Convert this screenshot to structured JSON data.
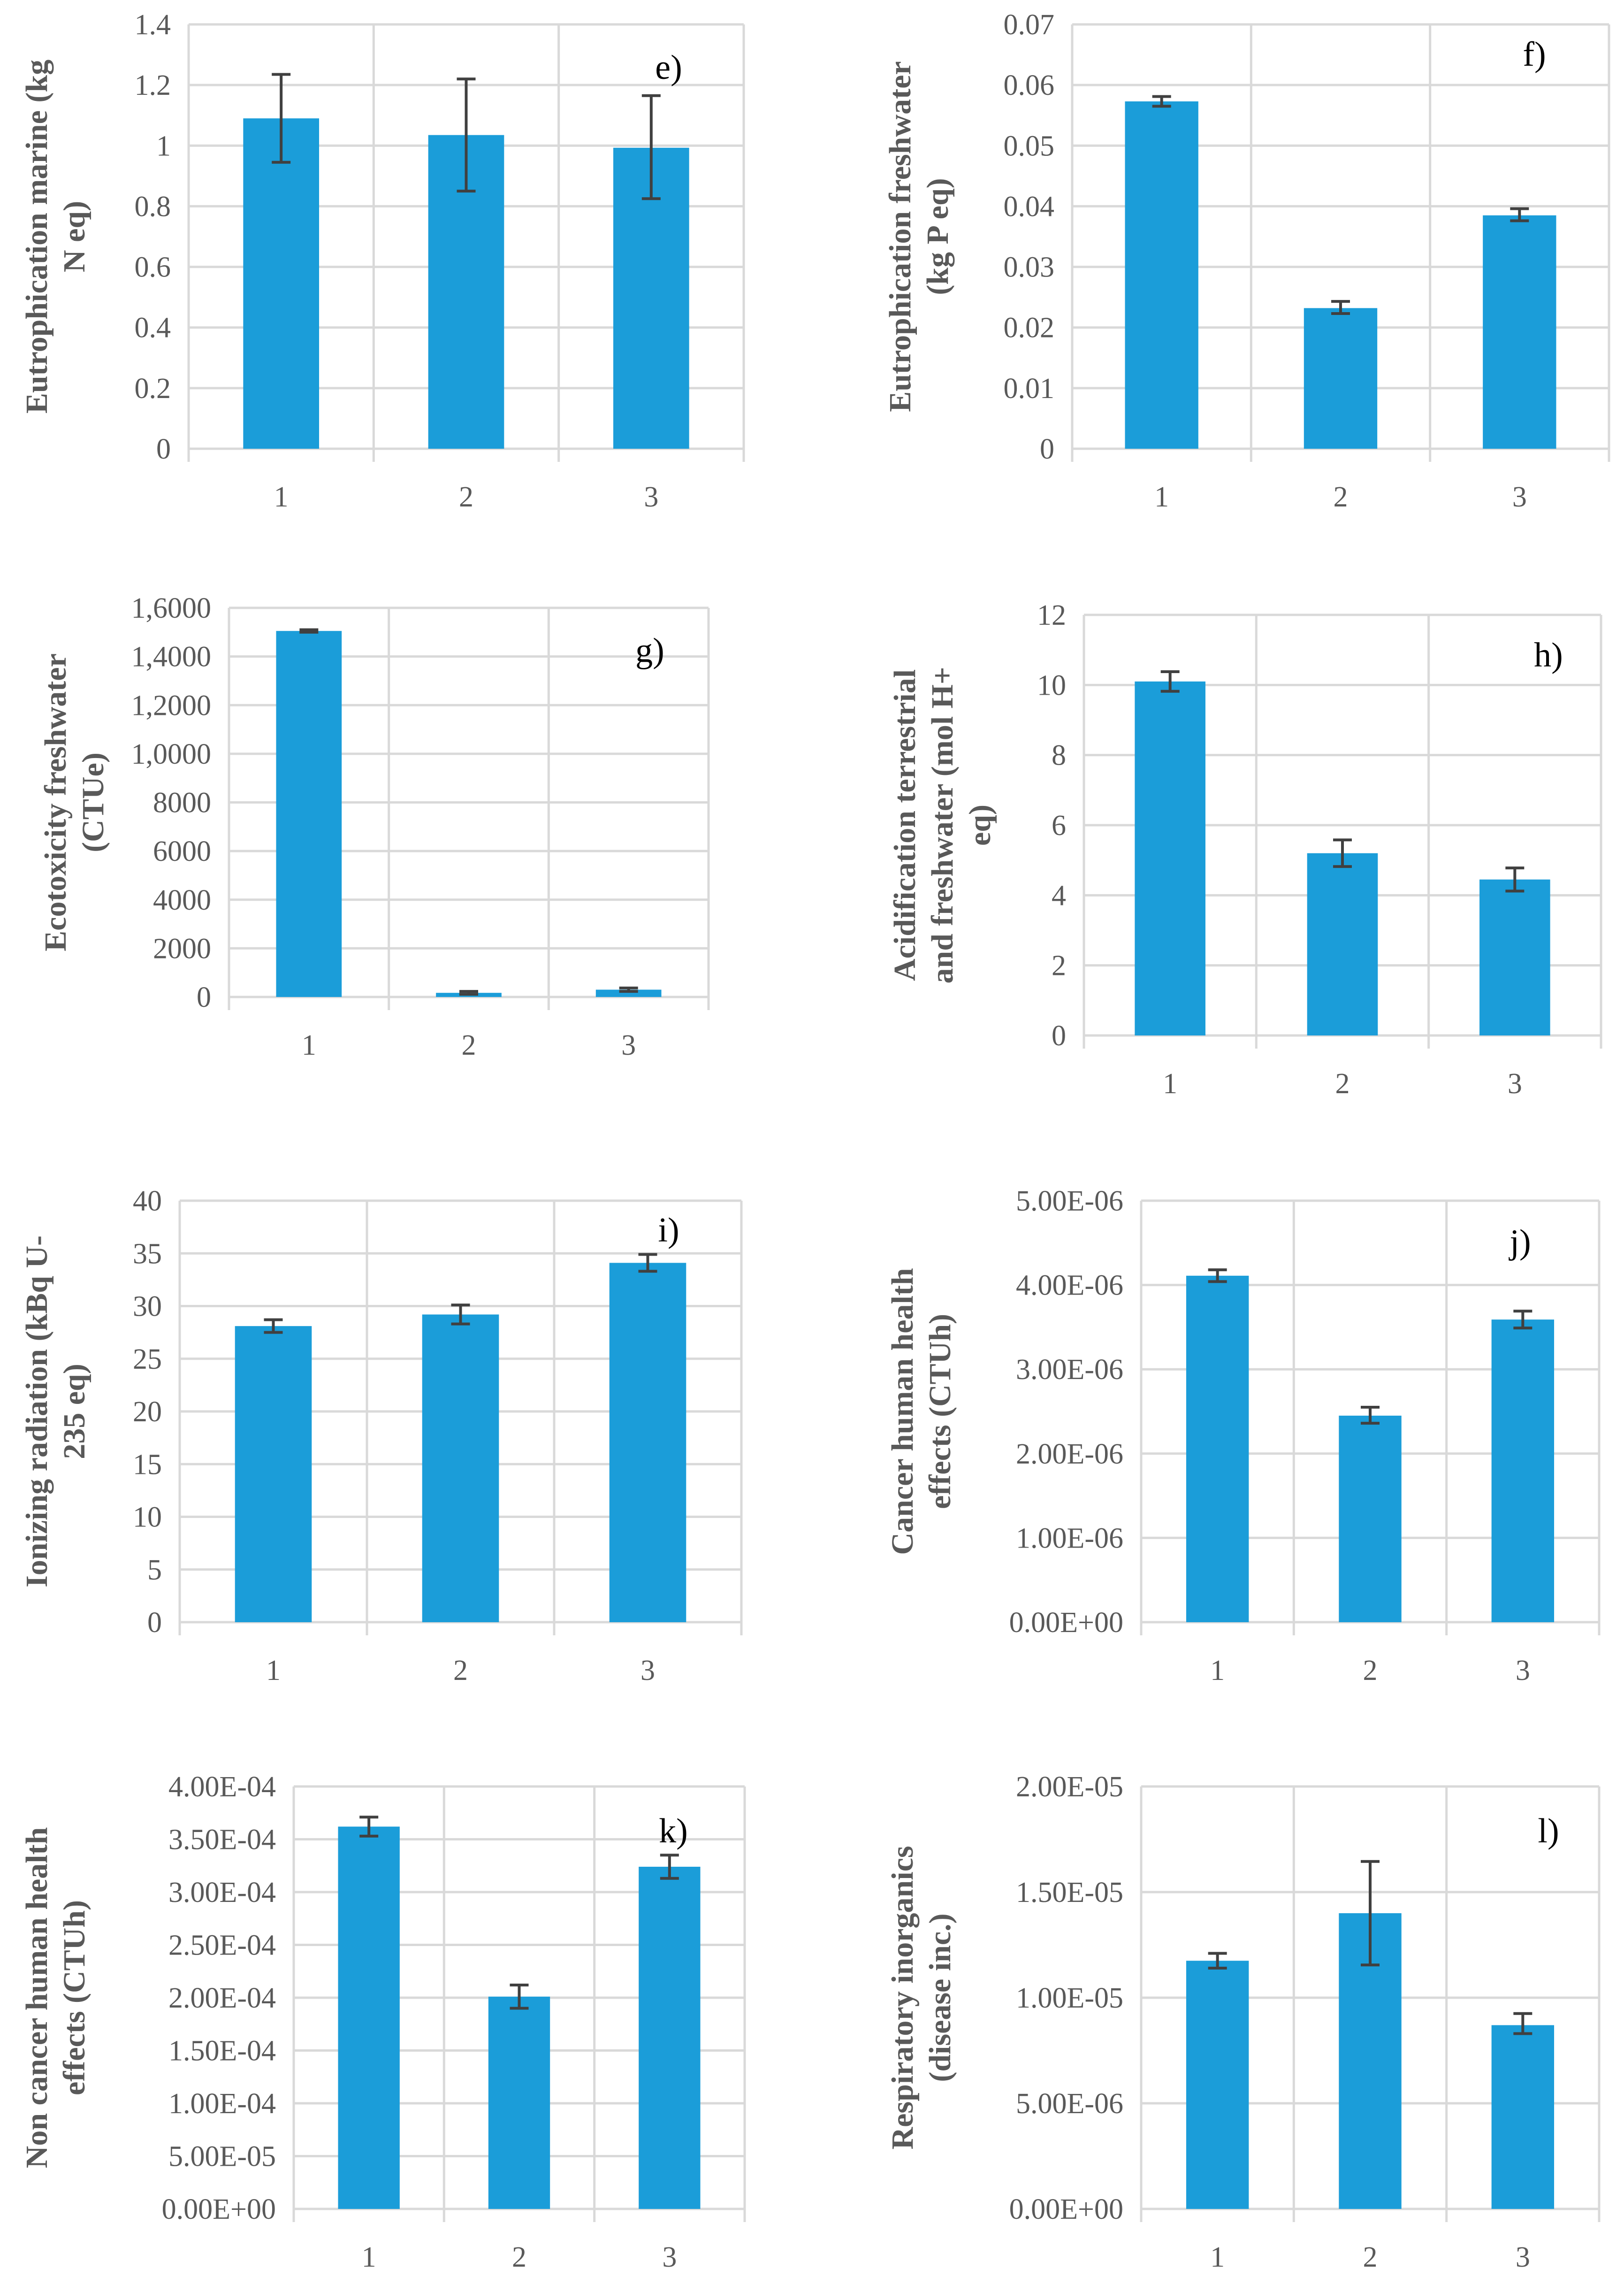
{
  "bar_color": "#1b9dd9",
  "chart_data": [
    {
      "type": "bar",
      "panel": "e)",
      "ylabel_lines": [
        "Eutrophication marine (kg",
        "N eq)"
      ],
      "categories": [
        "1",
        "2",
        "3"
      ],
      "values": [
        1.09,
        1.035,
        0.993
      ],
      "err_low": [
        0.945,
        0.85,
        0.825
      ],
      "err_high": [
        1.235,
        1.22,
        1.165
      ],
      "ylim": [
        0,
        1.4
      ],
      "yticks": [
        0,
        0.2,
        0.4,
        0.6,
        0.8,
        1.0,
        1.2,
        1.4
      ],
      "ytick_labels": [
        "0",
        "0.2",
        "0.4",
        "0.6",
        "0.8",
        "1",
        "1.2",
        "1.4"
      ]
    },
    {
      "type": "bar",
      "panel": "f)",
      "ylabel_lines": [
        "Eutrophication freshwater",
        "(kg P eq)"
      ],
      "categories": [
        "1",
        "2",
        "3"
      ],
      "values": [
        0.0573,
        0.0232,
        0.0385
      ],
      "err_low": [
        0.0565,
        0.0223,
        0.0376
      ],
      "err_high": [
        0.0581,
        0.0243,
        0.0396
      ],
      "ylim": [
        0,
        0.07
      ],
      "yticks": [
        0,
        0.01,
        0.02,
        0.03,
        0.04,
        0.05,
        0.06,
        0.07
      ],
      "ytick_labels": [
        "0",
        "0.01",
        "0.02",
        "0.03",
        "0.04",
        "0.05",
        "0.06",
        "0.07"
      ]
    },
    {
      "type": "bar",
      "panel": "g)",
      "ylabel_lines": [
        "Ecotoxicity freshwater",
        "(CTUe)"
      ],
      "categories": [
        "1",
        "2",
        "3"
      ],
      "values": [
        15050,
        170,
        300
      ],
      "err_low": [
        15000,
        110,
        230
      ],
      "err_high": [
        15100,
        230,
        370
      ],
      "ylim": [
        0,
        16000
      ],
      "yticks": [
        0,
        2000,
        4000,
        6000,
        8000,
        10000,
        12000,
        14000,
        16000
      ],
      "ytick_labels": [
        "0",
        "2000",
        "4000",
        "6000",
        "8000",
        "1,0000",
        "1,2000",
        "1,4000",
        "1,6000"
      ]
    },
    {
      "type": "bar",
      "panel": "h)",
      "ylabel_lines": [
        "Acidification terrestrial",
        "and freshwater (mol H+",
        "eq)"
      ],
      "categories": [
        "1",
        "2",
        "3"
      ],
      "values": [
        10.1,
        5.2,
        4.45
      ],
      "err_low": [
        9.82,
        4.82,
        4.12
      ],
      "err_high": [
        10.38,
        5.58,
        4.78
      ],
      "ylim": [
        0,
        12
      ],
      "yticks": [
        0,
        2,
        4,
        6,
        8,
        10,
        12
      ],
      "ytick_labels": [
        "0",
        "2",
        "4",
        "6",
        "8",
        "10",
        "12"
      ]
    },
    {
      "type": "bar",
      "panel": "i)",
      "ylabel_lines": [
        "Ionizing radiation (kBq U-",
        "235 eq)"
      ],
      "categories": [
        "1",
        "2",
        "3"
      ],
      "values": [
        28.1,
        29.2,
        34.1
      ],
      "err_low": [
        27.5,
        28.3,
        33.3
      ],
      "err_high": [
        28.7,
        30.1,
        34.9
      ],
      "ylim": [
        0,
        40
      ],
      "yticks": [
        0,
        5,
        10,
        15,
        20,
        25,
        30,
        35,
        40
      ],
      "ytick_labels": [
        "0",
        "5",
        "10",
        "15",
        "20",
        "25",
        "30",
        "35",
        "40"
      ]
    },
    {
      "type": "bar",
      "panel": "j)",
      "ylabel_lines": [
        "Cancer human health",
        "effects (CTUh)"
      ],
      "categories": [
        "1",
        "2",
        "3"
      ],
      "values": [
        4.11e-06,
        2.45e-06,
        3.59e-06
      ],
      "err_low": [
        4.04e-06,
        2.36e-06,
        3.49e-06
      ],
      "err_high": [
        4.18e-06,
        2.55e-06,
        3.69e-06
      ],
      "ylim": [
        0,
        5e-06
      ],
      "yticks": [
        0,
        1e-06,
        2e-06,
        3e-06,
        4e-06,
        5e-06
      ],
      "ytick_labels": [
        "0.00E+00",
        "1.00E-06",
        "2.00E-06",
        "3.00E-06",
        "4.00E-06",
        "5.00E-06"
      ]
    },
    {
      "type": "bar",
      "panel": "k)",
      "ylabel_lines": [
        "Non cancer human health",
        "effects (CTUh)"
      ],
      "categories": [
        "1",
        "2",
        "3"
      ],
      "values": [
        0.000362,
        0.000201,
        0.000324
      ],
      "err_low": [
        0.000353,
        0.00019,
        0.000313
      ],
      "err_high": [
        0.000371,
        0.000212,
        0.000335
      ],
      "ylim": [
        0,
        0.0004
      ],
      "yticks": [
        0,
        5e-05,
        0.0001,
        0.00015,
        0.0002,
        0.00025,
        0.0003,
        0.00035,
        0.0004
      ],
      "ytick_labels": [
        "0.00E+00",
        "5.00E-05",
        "1.00E-04",
        "1.50E-04",
        "2.00E-04",
        "2.50E-04",
        "3.00E-04",
        "3.50E-04",
        "4.00E-04"
      ]
    },
    {
      "type": "bar",
      "panel": "l)",
      "ylabel_lines": [
        "Respiratory inorganics",
        "(disease inc.)"
      ],
      "categories": [
        "1",
        "2",
        "3"
      ],
      "values": [
        1.175e-05,
        1.4e-05,
        8.7e-06
      ],
      "err_low": [
        1.14e-05,
        1.155e-05,
        8.3e-06
      ],
      "err_high": [
        1.21e-05,
        1.645e-05,
        9.25e-06
      ],
      "ylim": [
        0,
        2e-05
      ],
      "yticks": [
        0,
        5e-06,
        1e-05,
        1.5e-05,
        2e-05
      ],
      "ytick_labels": [
        "0.00E+00",
        "5.00E-06",
        "1.00E-05",
        "1.50E-05",
        "2.00E-05"
      ]
    }
  ]
}
